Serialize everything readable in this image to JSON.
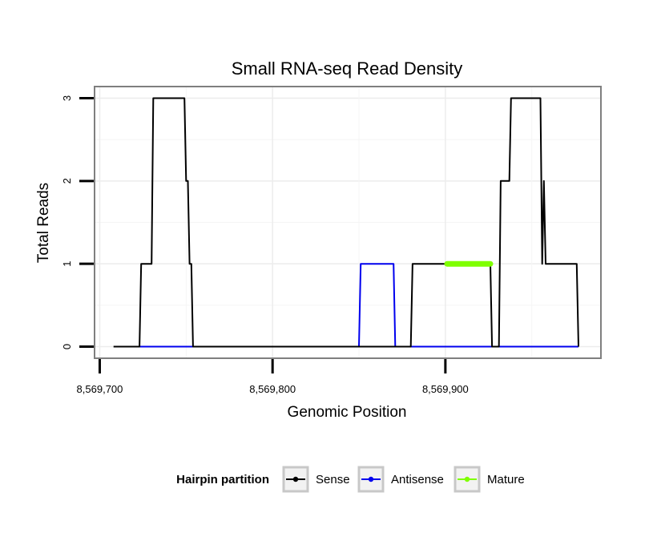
{
  "chart_data": {
    "type": "line",
    "title": "Small RNA-seq Read Density",
    "xlabel": "Genomic Position",
    "ylabel": "Total Reads",
    "xlim": [
      8569697,
      8569990
    ],
    "ylim": [
      -0.14,
      3.14
    ],
    "x_ticks": [
      8569700,
      8569800,
      8569900
    ],
    "x_tick_labels": [
      "8,569,700",
      "8,569,800",
      "8,569,900"
    ],
    "y_ticks": [
      0,
      1,
      2,
      3
    ],
    "y_tick_labels": [
      "0",
      "1",
      "2",
      "3"
    ],
    "grid": true,
    "legend": {
      "title": "Hairpin partition",
      "position": "bottom",
      "entries": [
        {
          "label": "Sense",
          "color": "#000000"
        },
        {
          "label": "Antisense",
          "color": "#0000ee"
        },
        {
          "label": "Mature",
          "color": "#7fff00"
        }
      ]
    },
    "series": [
      {
        "name": "Sense",
        "color": "#000000",
        "points": [
          [
            8569708,
            0
          ],
          [
            8569723,
            0
          ],
          [
            8569724,
            1
          ],
          [
            8569730,
            1
          ],
          [
            8569731,
            3
          ],
          [
            8569749,
            3
          ],
          [
            8569750,
            2
          ],
          [
            8569751,
            2
          ],
          [
            8569752,
            1
          ],
          [
            8569753,
            1
          ],
          [
            8569754,
            0
          ],
          [
            8569880,
            0
          ],
          [
            8569881,
            1
          ],
          [
            8569926,
            1
          ],
          [
            8569927,
            0
          ],
          [
            8569931,
            0
          ],
          [
            8569932,
            2
          ],
          [
            8569937,
            2
          ],
          [
            8569938,
            3
          ],
          [
            8569955,
            3
          ],
          [
            8569956,
            1
          ],
          [
            8569957,
            2
          ],
          [
            8569958,
            1
          ],
          [
            8569976,
            1
          ],
          [
            8569977,
            0
          ]
        ]
      },
      {
        "name": "Antisense",
        "color": "#0000ee",
        "points": [
          [
            8569723,
            0
          ],
          [
            8569850,
            0
          ],
          [
            8569851,
            1
          ],
          [
            8569870,
            1
          ],
          [
            8569871,
            0
          ],
          [
            8569977,
            0
          ]
        ]
      },
      {
        "name": "Mature",
        "color": "#7fff00",
        "points": [
          [
            8569901,
            1
          ],
          [
            8569926,
            1
          ]
        ]
      }
    ]
  }
}
